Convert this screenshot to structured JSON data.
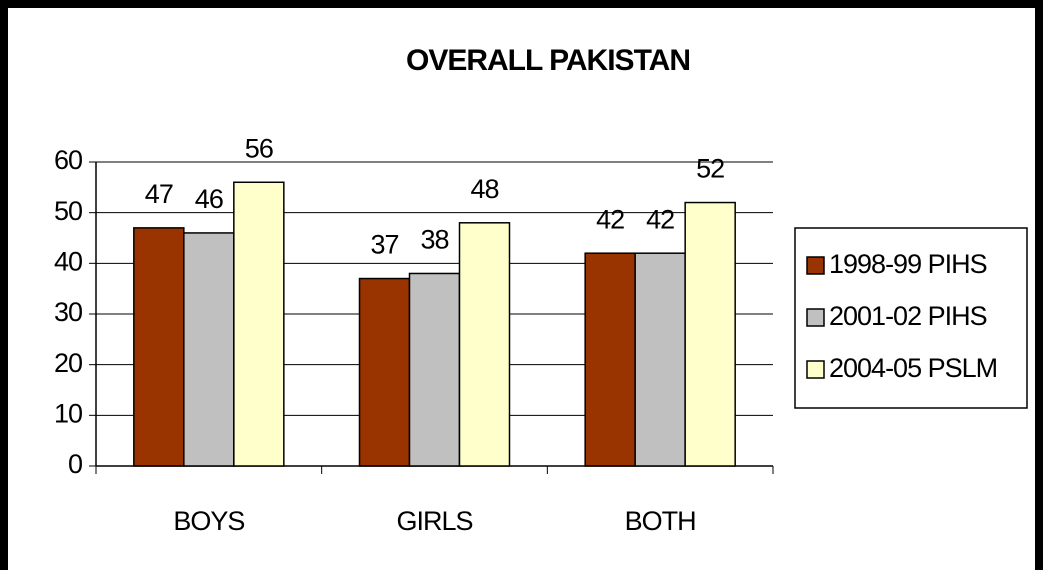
{
  "chart_data": {
    "type": "bar",
    "title": "OVERALL PAKISTAN",
    "categories": [
      "BOYS",
      "GIRLS",
      "BOTH"
    ],
    "series": [
      {
        "name": "1998-99 PIHS",
        "color": "#993300",
        "values": [
          47,
          37,
          42
        ]
      },
      {
        "name": "2001-02 PIHS",
        "color": "#c0c0c0",
        "values": [
          46,
          38,
          42
        ]
      },
      {
        "name": "2004-05 PSLM",
        "color": "#ffffcc",
        "values": [
          56,
          48,
          52
        ]
      }
    ],
    "ylim": [
      0,
      60
    ],
    "yticks": [
      0,
      10,
      20,
      30,
      40,
      50,
      60
    ],
    "grid": true,
    "legend": "right"
  }
}
